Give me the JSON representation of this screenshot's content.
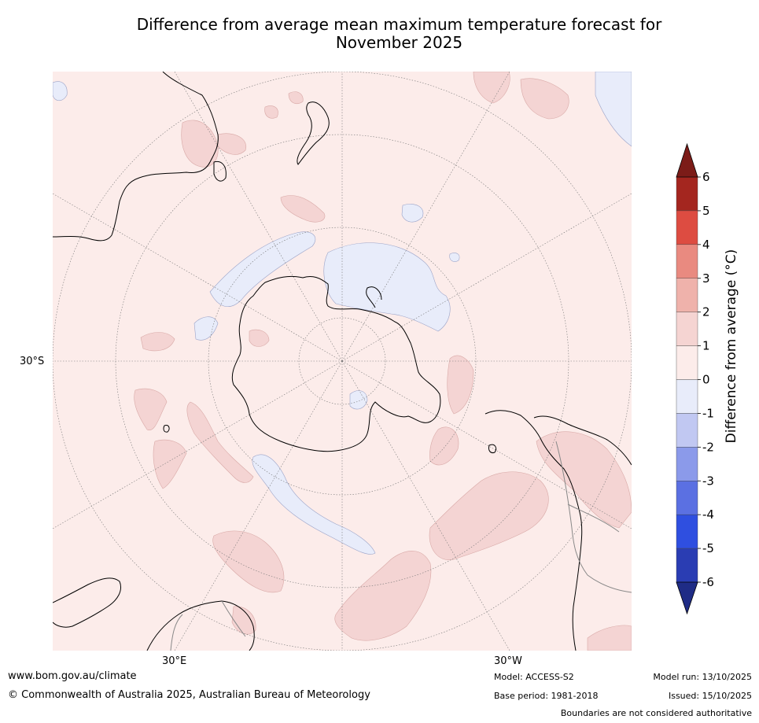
{
  "title_line1": "Difference from average mean maximum temperature forecast for",
  "title_line2": "November 2025",
  "map": {
    "lat_label": "30°S",
    "lon_labels": [
      "30°E",
      "30°W"
    ],
    "colors": {
      "ocean_base": "#fcecea",
      "warm_1_2": "#f4d4d3",
      "cool_0_m1": "#e8ecfa",
      "grid": "#777777",
      "coast": "#000000",
      "border": "#888888"
    }
  },
  "colorbar": {
    "label": "Difference from average (°C)",
    "ticks": [
      "6",
      "5",
      "4",
      "3",
      "2",
      "1",
      "0",
      "-1",
      "-2",
      "-3",
      "-4",
      "-5",
      "-6"
    ],
    "colors": [
      "#a4261f",
      "#dd4c41",
      "#e98a80",
      "#efb2ab",
      "#f5d4d2",
      "#fcecea",
      "#e8ecfa",
      "#c1c8f2",
      "#8b9aea",
      "#5b70e2",
      "#2f4fe0",
      "#2a3db3"
    ],
    "top_arrow": "#7c1c18",
    "bottom_arrow": "#1f2c86"
  },
  "footer": {
    "url": "www.bom.gov.au/climate",
    "copyright": "© Commonwealth of Australia 2025, Australian Bureau of Meteorology",
    "model": "Model: ACCESS-S2",
    "base_period": "Base period: 1981-2018",
    "model_run": "Model run: 13/10/2025",
    "issued": "Issued: 15/10/2025",
    "disclaimer": "Boundaries are not considered authoritative"
  }
}
